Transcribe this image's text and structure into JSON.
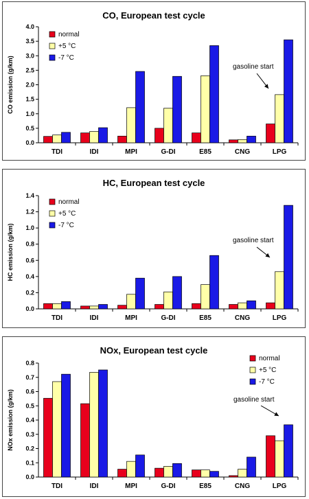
{
  "chart_data": [
    {
      "type": "bar",
      "title": "CO, European test cycle",
      "ylabel": "CO emission (g/km)",
      "xlabel": "",
      "ylim": [
        0,
        4.0
      ],
      "yticks": [
        "0.0",
        "0.5",
        "1.0",
        "1.5",
        "2.0",
        "2.5",
        "3.0",
        "3.5",
        "4.0"
      ],
      "categories": [
        "TDI",
        "IDI",
        "MPI",
        "G-DI",
        "E85",
        "CNG",
        "LPG"
      ],
      "series": [
        {
          "name": "normal",
          "color": "#e8001c",
          "values": [
            0.22,
            0.34,
            0.23,
            0.5,
            0.34,
            0.1,
            0.65
          ]
        },
        {
          "name": "+5 °C",
          "color": "#ffffa8",
          "values": [
            0.27,
            0.39,
            1.21,
            1.19,
            2.31,
            0.11,
            1.66
          ]
        },
        {
          "name": "-7 °C",
          "color": "#1a1ae6",
          "values": [
            0.36,
            0.52,
            2.46,
            2.29,
            3.35,
            0.23,
            3.55
          ]
        }
      ],
      "legend_position": "top-left",
      "annotation": {
        "text": "gasoline start",
        "category": "LPG"
      }
    },
    {
      "type": "bar",
      "title": "HC, European test cycle",
      "ylabel": "HC emission (g/km)",
      "xlabel": "",
      "ylim": [
        0,
        1.4
      ],
      "yticks": [
        "0.0",
        "0.2",
        "0.4",
        "0.6",
        "0.8",
        "1.0",
        "1.2",
        "1.4"
      ],
      "categories": [
        "TDI",
        "IDI",
        "MPI",
        "G-DI",
        "E85",
        "CNG",
        "LPG"
      ],
      "series": [
        {
          "name": "normal",
          "color": "#e8001c",
          "values": [
            0.065,
            0.035,
            0.045,
            0.055,
            0.065,
            0.055,
            0.075
          ]
        },
        {
          "name": "+5 °C",
          "color": "#ffffa8",
          "values": [
            0.065,
            0.035,
            0.18,
            0.21,
            0.3,
            0.075,
            0.46
          ]
        },
        {
          "name": "-7 °C",
          "color": "#1a1ae6",
          "values": [
            0.09,
            0.055,
            0.38,
            0.4,
            0.66,
            0.1,
            1.28
          ]
        }
      ],
      "legend_position": "top-left",
      "annotation": {
        "text": "gasoline start",
        "category": "LPG"
      }
    },
    {
      "type": "bar",
      "title": "NOx, European test cycle",
      "ylabel": "NOx emission (g/km)",
      "xlabel": "",
      "ylim": [
        0,
        0.8
      ],
      "yticks": [
        "0.0",
        "0.1",
        "0.2",
        "0.3",
        "0.4",
        "0.5",
        "0.6",
        "0.7",
        "0.8"
      ],
      "categories": [
        "TDI",
        "IDI",
        "MPI",
        "G-DI",
        "E85",
        "CNG",
        "LPG"
      ],
      "series": [
        {
          "name": "normal",
          "color": "#e8001c",
          "values": [
            0.553,
            0.515,
            0.055,
            0.062,
            0.05,
            0.01,
            0.29
          ]
        },
        {
          "name": "+5 °C",
          "color": "#ffffa8",
          "values": [
            0.67,
            0.735,
            0.11,
            0.075,
            0.05,
            0.055,
            0.255
          ]
        },
        {
          "name": "-7 °C",
          "color": "#1a1ae6",
          "values": [
            0.722,
            0.752,
            0.155,
            0.095,
            0.04,
            0.14,
            0.367
          ]
        }
      ],
      "legend_position": "top-right",
      "annotation": {
        "text": "gasoline start",
        "category": "LPG"
      }
    }
  ]
}
